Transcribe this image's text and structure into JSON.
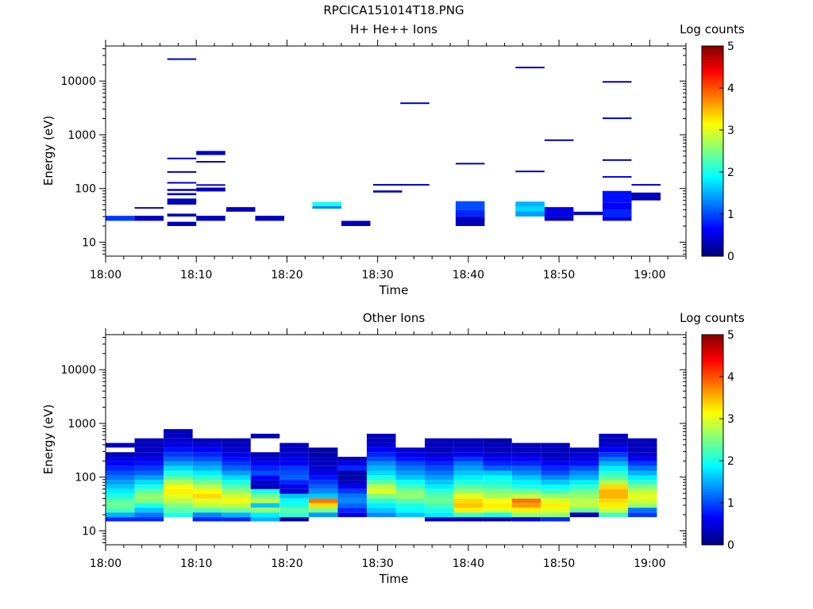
{
  "figure": {
    "title": "RPCICA151014T18.PNG"
  },
  "chart_data": [
    {
      "type": "heatmap",
      "title": "H+ He++ Ions",
      "xlabel": "Time",
      "ylabel": "Energy (eV)",
      "x_ticks": [
        "18:00",
        "18:10",
        "18:20",
        "18:30",
        "18:40",
        "18:50",
        "19:00"
      ],
      "x_tick_minutes": [
        0,
        10,
        20,
        30,
        40,
        50,
        60
      ],
      "xlim_minutes": [
        0,
        64
      ],
      "y_scale": "log",
      "ylim": [
        5.5,
        45000
      ],
      "y_ticks": [
        "10",
        "100",
        "1000",
        "10000"
      ],
      "y_tick_values": [
        10,
        100,
        1000,
        10000
      ],
      "colorbar": {
        "label": "Log counts",
        "range": [
          0,
          5
        ],
        "ticks": [
          "0",
          "1",
          "2",
          "3",
          "4",
          "5"
        ]
      },
      "column_width_minutes": 3.2,
      "columns": [
        {
          "t": 0.0,
          "bins": [
            [
              25,
              31,
              0.9
            ]
          ]
        },
        {
          "t": 3.2,
          "bins": [
            [
              25,
              31,
              0.3
            ],
            [
              42,
              45,
              0.3
            ]
          ]
        },
        {
          "t": 6.8,
          "bins": [
            [
              20,
              24,
              0.3
            ],
            [
              30,
              34,
              0.3
            ],
            [
              50,
              65,
              0.3
            ],
            [
              75,
              82,
              0.3
            ],
            [
              90,
              98,
              0.3
            ],
            [
              125,
              132,
              0.3
            ],
            [
              200,
              210,
              0.3
            ],
            [
              360,
              375,
              0.3
            ],
            [
              25000,
              26500,
              0.3
            ]
          ]
        },
        {
          "t": 10.0,
          "bins": [
            [
              25,
              31,
              0.3
            ],
            [
              88,
              104,
              0.3
            ],
            [
              115,
              120,
              0.3
            ],
            [
              310,
              325,
              0.3
            ],
            [
              420,
              500,
              0.3
            ]
          ]
        },
        {
          "t": 13.3,
          "bins": [
            [
              37,
              45,
              0.3
            ]
          ]
        },
        {
          "t": 16.5,
          "bins": [
            [
              25,
              31,
              0.3
            ]
          ]
        },
        {
          "t": 22.8,
          "bins": [
            [
              42,
              47,
              1.3
            ],
            [
              47,
              56,
              2.0
            ]
          ]
        },
        {
          "t": 26.0,
          "bins": [
            [
              20,
              25,
              0.3
            ]
          ]
        },
        {
          "t": 29.5,
          "bins": [
            [
              84,
              92,
              0.3
            ],
            [
              115,
              121,
              0.3
            ]
          ]
        },
        {
          "t": 32.5,
          "bins": [
            [
              115,
              121,
              0.3
            ],
            [
              3800,
              4000,
              0.3
            ]
          ]
        },
        {
          "t": 38.6,
          "bins": [
            [
              20,
              30,
              0.3
            ],
            [
              30,
              40,
              0.8
            ],
            [
              40,
              58,
              1.0
            ],
            [
              285,
              300,
              0.3
            ]
          ]
        },
        {
          "t": 45.2,
          "bins": [
            [
              30,
              38,
              1.4
            ],
            [
              38,
              46,
              1.7
            ],
            [
              46,
              57,
              1.5
            ],
            [
              205,
              215,
              0.3
            ],
            [
              17500,
              18500,
              0.3
            ]
          ]
        },
        {
          "t": 48.4,
          "bins": [
            [
              25,
              30,
              0.3
            ],
            [
              30,
              45,
              0.5
            ],
            [
              780,
              820,
              0.3
            ]
          ]
        },
        {
          "t": 51.6,
          "bins": [
            [
              32,
              37,
              0.3
            ]
          ]
        },
        {
          "t": 54.8,
          "bins": [
            [
              25,
              30,
              0.5
            ],
            [
              30,
              40,
              0.8
            ],
            [
              40,
              55,
              0.6
            ],
            [
              55,
              90,
              0.7
            ],
            [
              165,
              170,
              0.5
            ],
            [
              330,
              350,
              0.3
            ],
            [
              2000,
              2100,
              0.3
            ],
            [
              9500,
              10000,
              0.3
            ]
          ]
        },
        {
          "t": 58.0,
          "bins": [
            [
              60,
              84,
              0.3
            ],
            [
              115,
              121,
              0.3
            ]
          ]
        }
      ]
    },
    {
      "type": "heatmap",
      "title": "Other Ions",
      "xlabel": "Time",
      "ylabel": "Energy (eV)",
      "x_ticks": [
        "18:00",
        "18:10",
        "18:20",
        "18:30",
        "18:40",
        "18:50",
        "19:00"
      ],
      "x_tick_minutes": [
        0,
        10,
        20,
        30,
        40,
        50,
        60
      ],
      "xlim_minutes": [
        0,
        64
      ],
      "y_scale": "log",
      "ylim": [
        5.5,
        45000
      ],
      "y_ticks": [
        "10",
        "100",
        "1000",
        "10000"
      ],
      "y_tick_values": [
        10,
        100,
        1000,
        10000
      ],
      "colorbar": {
        "label": "Log counts",
        "range": [
          0,
          5
        ],
        "ticks": [
          "0",
          "1",
          "2",
          "3",
          "4",
          "5"
        ]
      },
      "column_width_minutes": 3.2,
      "energy_edges": [
        15,
        18,
        22,
        27,
        33,
        40,
        49,
        60,
        73,
        89,
        108,
        132,
        161,
        196,
        239,
        291,
        355,
        433,
        528,
        643,
        784,
        956
      ],
      "columns": [
        {
          "t": 0.0,
          "counts": [
            0.8,
            1.5,
            2.2,
            2.4,
            2.3,
            2.0,
            1.8,
            1.6,
            1.4,
            1.2,
            1.0,
            0.8,
            0.6,
            0.5,
            0.3,
            null,
            0.3
          ]
        },
        {
          "t": 3.2,
          "counts": [
            0.8,
            1.2,
            1.6,
            2.0,
            2.5,
            2.6,
            2.3,
            2.0,
            1.7,
            1.4,
            1.1,
            0.9,
            0.7,
            0.5,
            0.4,
            0.3,
            0.3,
            0.3
          ]
        },
        {
          "t": 6.4,
          "counts": [
            null,
            2.0,
            2.3,
            2.5,
            2.8,
            3.0,
            3.2,
            3.1,
            2.7,
            2.3,
            2.0,
            1.7,
            1.4,
            1.1,
            0.9,
            0.7,
            0.5,
            0.4,
            0.3,
            0.3
          ]
        },
        {
          "t": 9.6,
          "counts": [
            0.8,
            1.3,
            2.3,
            2.8,
            3.0,
            3.3,
            3.1,
            2.8,
            2.4,
            2.1,
            1.8,
            1.5,
            1.3,
            1.0,
            0.8,
            0.6,
            0.4,
            0.3
          ]
        },
        {
          "t": 12.8,
          "counts": [
            0.8,
            1.5,
            2.4,
            2.8,
            3.1,
            2.9,
            2.6,
            2.3,
            2.0,
            1.7,
            1.4,
            1.1,
            0.9,
            0.7,
            0.5,
            0.4,
            0.3,
            0.3
          ]
        },
        {
          "t": 16.0,
          "counts": [
            1.5,
            1.8,
            2.6,
            1.6,
            2.8,
            2.4,
            2.0,
            0.3,
            0.4,
            0.6,
            1.0,
            0.8,
            0.6,
            0.4,
            0.3,
            null,
            null,
            null,
            0.3
          ]
        },
        {
          "t": 19.2,
          "counts": [
            0.2,
            2.1,
            2.3,
            2.0,
            1.9,
            1.6,
            0.4,
            0.5,
            0.8,
            1.1,
            1.0,
            0.9,
            0.6,
            0.5,
            0.4,
            0.3,
            0.3
          ]
        },
        {
          "t": 22.4,
          "counts": [
            null,
            1.4,
            2.5,
            3.3,
            3.8,
            1.6,
            1.3,
            1.1,
            0.9,
            0.7,
            0.5,
            0.4,
            0.3,
            0.3,
            0.2,
            0.2
          ]
        },
        {
          "t": 25.6,
          "counts": [
            null,
            0.5,
            0.8,
            1.1,
            1.3,
            1.2,
            0.9,
            0.6,
            0.3,
            0.2,
            0.2,
            0.8,
            0.5,
            0.3
          ]
        },
        {
          "t": 28.8,
          "counts": [
            null,
            1.3,
            1.6,
            1.8,
            2.1,
            2.5,
            3.0,
            2.8,
            2.3,
            2.0,
            1.7,
            1.5,
            1.3,
            1.0,
            0.8,
            0.6,
            0.4,
            0.3,
            0.3
          ]
        },
        {
          "t": 32.0,
          "counts": [
            null,
            1.6,
            1.9,
            2.0,
            2.3,
            2.6,
            2.5,
            2.2,
            1.9,
            1.6,
            1.4,
            1.2,
            1.0,
            0.7,
            0.5,
            0.4
          ]
        },
        {
          "t": 35.2,
          "counts": [
            0.3,
            1.8,
            2.0,
            2.2,
            2.4,
            2.3,
            2.1,
            1.8,
            1.6,
            1.4,
            1.2,
            1.0,
            0.8,
            0.6,
            0.4,
            0.3,
            0.3,
            0.3
          ]
        },
        {
          "t": 38.4,
          "counts": [
            0.3,
            2.2,
            3.2,
            3.4,
            3.3,
            3.0,
            2.6,
            2.3,
            2.0,
            1.8,
            1.6,
            1.4,
            1.2,
            0.9,
            0.6,
            0.4,
            0.3,
            0.3
          ]
        },
        {
          "t": 41.6,
          "counts": [
            0.2,
            2.0,
            3.0,
            3.2,
            3.1,
            2.7,
            2.5,
            2.2,
            2.0,
            1.9,
            1.6,
            1.1,
            0.8,
            0.6,
            0.4,
            0.3,
            0.3,
            0.2
          ]
        },
        {
          "t": 44.8,
          "counts": [
            0.5,
            2.6,
            3.2,
            3.6,
            3.8,
            2.8,
            2.4,
            2.0,
            1.8,
            1.6,
            1.3,
            1.1,
            0.8,
            0.6,
            0.4,
            0.3,
            0.3
          ]
        },
        {
          "t": 48.0,
          "counts": [
            0.8,
            2.6,
            3.0,
            3.2,
            3.0,
            2.6,
            2.2,
            1.9,
            1.6,
            1.3,
            1.0,
            0.8,
            0.6,
            0.4,
            0.3,
            0.3,
            0.3
          ]
        },
        {
          "t": 51.2,
          "counts": [
            null,
            0.3,
            2.4,
            2.8,
            2.8,
            2.6,
            2.4,
            2.1,
            1.8,
            1.5,
            1.3,
            1.0,
            0.7,
            0.5,
            0.4,
            0.3
          ]
        },
        {
          "t": 54.4,
          "counts": [
            null,
            2.2,
            2.9,
            3.2,
            3.3,
            3.5,
            3.5,
            3.3,
            2.7,
            2.3,
            2.1,
            1.8,
            1.5,
            1.2,
            0.9,
            0.6,
            0.4,
            0.3,
            0.3
          ]
        },
        {
          "t": 57.6,
          "counts": [
            null,
            0.9,
            1.2,
            2.6,
            2.9,
            3.0,
            2.8,
            2.5,
            2.1,
            1.8,
            1.5,
            1.2,
            0.9,
            0.6,
            0.4,
            0.3,
            0.3,
            0.3
          ]
        }
      ]
    }
  ]
}
